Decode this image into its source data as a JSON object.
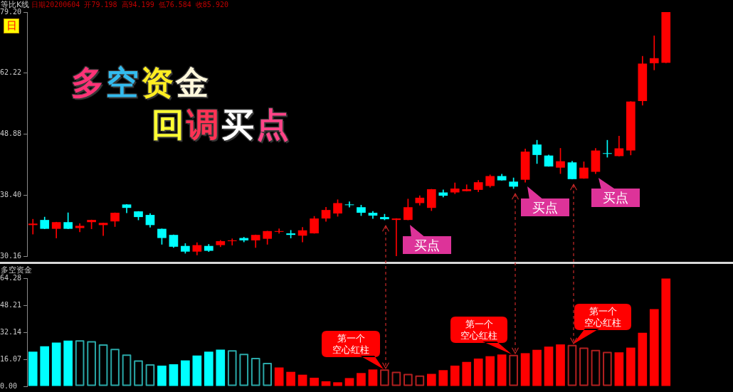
{
  "chart_data": [
    {
      "type": "candlestick",
      "title": "等比K线",
      "subtitle": "日期20200604 开79.198 高94.199 低76.584 收85.920",
      "categories": [
        null,
        null,
        null,
        null,
        null,
        null,
        null,
        null,
        null,
        null,
        null,
        null,
        null,
        null,
        null,
        null,
        null,
        null,
        null,
        null,
        null,
        null,
        null,
        null,
        null,
        null,
        null,
        null,
        null,
        null,
        null,
        null,
        null,
        null,
        null,
        null,
        null,
        null,
        null,
        null,
        null,
        null,
        null,
        null,
        null,
        null,
        null,
        null,
        null,
        null,
        null,
        null,
        null,
        null,
        null
      ],
      "ohlc": [
        [
          34.1,
          34.9,
          32.9,
          34.3
        ],
        [
          34.8,
          35.2,
          33.6,
          33.6
        ],
        [
          33.6,
          34.5,
          32.4,
          34.5
        ],
        [
          34.5,
          35.8,
          33.6,
          33.6
        ],
        [
          33.7,
          34.3,
          33.2,
          34.0
        ],
        [
          34.5,
          34.8,
          33.6,
          34.8
        ],
        [
          34.1,
          34.4,
          32.7,
          34.4
        ],
        [
          34.6,
          35.8,
          33.9,
          35.8
        ],
        [
          37.0,
          37.0,
          35.8,
          36.5
        ],
        [
          36.0,
          36.0,
          34.8,
          35.2
        ],
        [
          35.5,
          35.7,
          33.8,
          34.1
        ],
        [
          33.6,
          33.6,
          31.6,
          32.4
        ],
        [
          32.8,
          32.8,
          31.2,
          31.3
        ],
        [
          31.4,
          31.7,
          30.5,
          30.7
        ],
        [
          30.7,
          31.8,
          30.3,
          31.5
        ],
        [
          31.4,
          31.6,
          30.7,
          30.8
        ],
        [
          31.5,
          32.1,
          31.3,
          32.0
        ],
        [
          32.0,
          32.3,
          31.5,
          32.1
        ],
        [
          32.4,
          32.5,
          31.9,
          32.1
        ],
        [
          32.1,
          32.8,
          31.2,
          32.8
        ],
        [
          32.3,
          33.3,
          31.6,
          33.3
        ],
        [
          33.2,
          33.6,
          33.0,
          33.3
        ],
        [
          33.0,
          33.4,
          32.4,
          32.8
        ],
        [
          32.7,
          33.8,
          31.9,
          33.4
        ],
        [
          33.0,
          35.3,
          33.0,
          35.0
        ],
        [
          35.0,
          36.6,
          34.6,
          36.2
        ],
        [
          35.7,
          37.7,
          35.3,
          37.2
        ],
        [
          36.9,
          37.4,
          36.6,
          36.9
        ],
        [
          36.6,
          36.9,
          35.4,
          35.8
        ],
        [
          35.8,
          36.0,
          35.0,
          35.4
        ],
        [
          35.2,
          35.6,
          34.8,
          34.9
        ],
        [
          34.8,
          35.0,
          30.16,
          35.0
        ],
        [
          34.8,
          37.8,
          34.8,
          36.6
        ],
        [
          37.2,
          38.3,
          36.9,
          38.0
        ],
        [
          36.5,
          39.3,
          36.1,
          39.3
        ],
        [
          38.8,
          39.2,
          38.1,
          38.3
        ],
        [
          38.8,
          40.3,
          38.6,
          39.4
        ],
        [
          39.0,
          40.0,
          39.0,
          39.3
        ],
        [
          39.2,
          40.7,
          38.9,
          40.4
        ],
        [
          39.8,
          41.6,
          39.6,
          41.4
        ],
        [
          41.4,
          41.7,
          40.7,
          40.7
        ],
        [
          40.5,
          41.1,
          39.4,
          39.7
        ],
        [
          40.8,
          46.1,
          40.4,
          45.6
        ],
        [
          46.9,
          47.7,
          43.5,
          45.0
        ],
        [
          44.9,
          45.0,
          43.0,
          43.0
        ],
        [
          42.8,
          46.2,
          41.8,
          43.9
        ],
        [
          43.7,
          43.9,
          40.9,
          40.9
        ],
        [
          41.0,
          43.8,
          41.0,
          42.8
        ],
        [
          42.1,
          46.2,
          41.8,
          45.8
        ],
        [
          45.2,
          47.7,
          44.6,
          45.2
        ],
        [
          44.8,
          48.5,
          44.8,
          46.2
        ],
        [
          45.8,
          55.6,
          45.0,
          55.6
        ],
        [
          55.7,
          66.5,
          54.8,
          64.6
        ],
        [
          64.7,
          72.1,
          63.0,
          66.0
        ],
        [
          64.8,
          79.2,
          64.8,
          79.2
        ]
      ],
      "colors": [
        "#ff0000",
        "#00ffff",
        "#ff0000",
        "#00ffff",
        "#ff0000",
        "#ff0000",
        "#ff0000",
        "#ff0000",
        "#00ffff",
        "#00ffff",
        "#00ffff",
        "#00ffff",
        "#00ffff",
        "#00ffff",
        "#ff0000",
        "#00ffff",
        "#ff0000",
        "#ff0000",
        "#00ffff",
        "#ff0000",
        "#ff0000",
        "#ff0000",
        "#00ffff",
        "#ff0000",
        "#ff0000",
        "#ff0000",
        "#ff0000",
        "#00ffff",
        "#00ffff",
        "#00ffff",
        "#00ffff",
        "#ff0000",
        "#ff0000",
        "#ff0000",
        "#ff0000",
        "#00ffff",
        "#ff0000",
        "#ff0000",
        "#ff0000",
        "#ff0000",
        "#00ffff",
        "#00ffff",
        "#ff0000",
        "#00ffff",
        "#00ffff",
        "#ff0000",
        "#00ffff",
        "#ff0000",
        "#ff0000",
        "#00ffff",
        "#ff0000",
        "#ff0000",
        "#ff0000",
        "#ff0000",
        "#ff0000"
      ],
      "log": true,
      "ylim": [
        30.16,
        79.2
      ],
      "yticks": [
        30.16,
        {
          "value": 38.4,
          "label": "38.40"
        },
        48.88,
        62.22,
        {
          "value": 79.2,
          "label": "79.20"
        }
      ],
      "tick_labels": "y",
      "grid": false,
      "annotations": [
        "日",
        "多空资金",
        "回调买点",
        "买点",
        "买点",
        "买点"
      ]
    },
    {
      "type": "bar",
      "title": "多空资金",
      "categories": [
        null,
        null,
        null,
        null,
        null,
        null,
        null,
        null,
        null,
        null,
        null,
        null,
        null,
        null,
        null,
        null,
        null,
        null,
        null,
        null,
        null,
        null,
        null,
        null,
        null,
        null,
        null,
        null,
        null,
        null,
        null,
        null,
        null,
        null,
        null,
        null,
        null,
        null,
        null,
        null,
        null,
        null,
        null,
        null,
        null,
        null,
        null,
        null,
        null,
        null,
        null,
        null,
        null,
        null,
        null
      ],
      "series": [
        {
          "color": "#00ffff",
          "values": [
            20.6,
            23.8,
            26.0,
            27.2,
            null,
            null,
            null,
            null,
            null,
            null,
            null,
            12.3,
            13.1,
            15.4,
            18.3,
            20.6,
            21.8,
            null,
            null,
            null,
            null,
            null,
            null,
            null,
            null,
            null,
            null,
            null,
            null,
            null,
            null,
            null,
            null,
            null,
            null,
            null,
            null,
            null,
            null,
            null,
            null,
            null,
            null,
            null,
            null,
            null,
            null,
            null,
            null,
            null,
            null,
            null,
            null,
            null,
            null
          ]
        },
        {
          "color": "#2aa8a8",
          "line_style": "solid",
          "values": [
            null,
            null,
            null,
            null,
            27.4,
            26.9,
            24.9,
            22.3,
            18.9,
            15.4,
            13.1,
            null,
            null,
            null,
            null,
            null,
            null,
            21.5,
            19.4,
            16.9,
            14.0,
            null,
            null,
            null,
            null,
            null,
            null,
            null,
            null,
            null,
            null,
            null,
            null,
            null,
            null,
            null,
            null,
            null,
            null,
            null,
            null,
            null,
            null,
            null,
            null,
            null,
            null,
            null,
            null,
            null,
            null,
            null,
            null,
            null,
            null
          ]
        },
        {
          "color": "#ff0000",
          "values": [
            null,
            null,
            null,
            null,
            null,
            null,
            null,
            null,
            null,
            null,
            null,
            null,
            null,
            null,
            null,
            null,
            null,
            null,
            null,
            null,
            null,
            11.2,
            8.6,
            6.9,
            5.1,
            3.0,
            2.4,
            4.9,
            7.9,
            10.0,
            null,
            null,
            null,
            null,
            7.4,
            9.6,
            12.3,
            14.5,
            16.5,
            17.9,
            18.9,
            null,
            19.7,
            21.7,
            23.6,
            24.9,
            null,
            null,
            null,
            null,
            20.2,
            23.0,
            31.8,
            45.9,
            64.1
          ]
        },
        {
          "color": "#b42020",
          "line_style": "solid",
          "values": [
            null,
            null,
            null,
            null,
            null,
            null,
            null,
            null,
            null,
            null,
            null,
            null,
            null,
            null,
            null,
            null,
            null,
            null,
            null,
            null,
            null,
            null,
            null,
            null,
            null,
            null,
            null,
            null,
            null,
            null,
            10.0,
            8.7,
            7.4,
            6.5,
            null,
            null,
            null,
            null,
            null,
            null,
            null,
            18.7,
            null,
            null,
            null,
            null,
            24.6,
            23.0,
            21.7,
            20.5,
            null,
            null,
            null,
            null,
            null
          ]
        }
      ],
      "ylim": [
        0,
        64.28
      ],
      "yticks": [
        {
          "value": 0,
          "label": "0.00"
        },
        16.07,
        32.14,
        48.21,
        64.28
      ],
      "tick_labels": "y",
      "grid": false,
      "annotations": [
        "第一个空心红柱",
        "第一个空心红柱",
        "第一个空心红柱"
      ]
    }
  ]
}
